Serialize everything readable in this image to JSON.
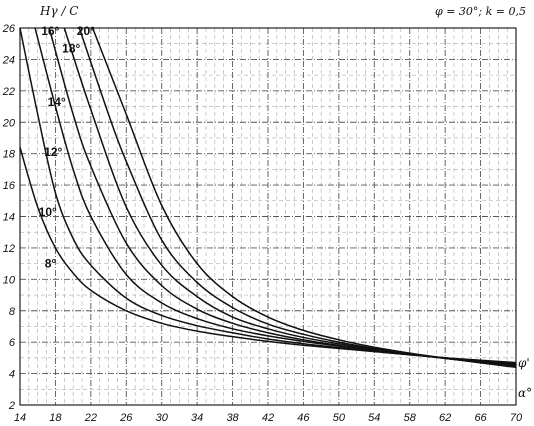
{
  "chart_data": {
    "type": "line",
    "title": "",
    "params": "φ = 30°; k = 0,5",
    "ylabel": "Hγ / C",
    "xlabel": "α°",
    "right_label": "φ'",
    "xlim": [
      14,
      70
    ],
    "ylim": [
      2,
      26
    ],
    "x_ticks": [
      "14",
      "18",
      "22",
      "26",
      "30",
      "34",
      "38",
      "42",
      "46",
      "50",
      "54",
      "58",
      "62",
      "66",
      "70"
    ],
    "y_ticks": [
      "2",
      "4",
      "6",
      "8",
      "10",
      "12",
      "14",
      "16",
      "18",
      "20",
      "22",
      "24",
      "26"
    ],
    "grid": true,
    "series": [
      {
        "name": "8°",
        "points": [
          [
            14,
            18.4
          ],
          [
            16,
            14.6
          ],
          [
            18,
            12.0
          ],
          [
            20,
            10.4
          ],
          [
            22,
            9.3
          ],
          [
            26,
            8.0
          ],
          [
            30,
            7.2
          ],
          [
            34,
            6.7
          ],
          [
            38,
            6.35
          ],
          [
            42,
            6.05
          ],
          [
            46,
            5.8
          ],
          [
            50,
            5.6
          ],
          [
            54,
            5.4
          ],
          [
            58,
            5.2
          ],
          [
            62,
            5.0
          ],
          [
            66,
            4.85
          ],
          [
            70,
            4.7
          ]
        ]
      },
      {
        "name": "10°",
        "points": [
          [
            14,
            26.0
          ],
          [
            16,
            20.5
          ],
          [
            18,
            15.5
          ],
          [
            20,
            12.6
          ],
          [
            22,
            10.9
          ],
          [
            26,
            8.8
          ],
          [
            30,
            7.7
          ],
          [
            34,
            7.05
          ],
          [
            38,
            6.6
          ],
          [
            42,
            6.2
          ],
          [
            46,
            5.9
          ],
          [
            50,
            5.65
          ],
          [
            54,
            5.42
          ],
          [
            58,
            5.2
          ],
          [
            62,
            5.0
          ],
          [
            66,
            4.82
          ],
          [
            70,
            4.65
          ]
        ]
      },
      {
        "name": "12°",
        "points": [
          [
            15.7,
            26.0
          ],
          [
            18,
            21.0
          ],
          [
            20,
            17.0
          ],
          [
            22,
            14.0
          ],
          [
            26,
            10.3
          ],
          [
            30,
            8.5
          ],
          [
            34,
            7.5
          ],
          [
            38,
            6.85
          ],
          [
            42,
            6.4
          ],
          [
            46,
            6.05
          ],
          [
            50,
            5.75
          ],
          [
            54,
            5.48
          ],
          [
            58,
            5.22
          ],
          [
            62,
            5.0
          ],
          [
            66,
            4.8
          ],
          [
            70,
            4.6
          ]
        ]
      },
      {
        "name": "14°",
        "points": [
          [
            17.3,
            26.0
          ],
          [
            20,
            20.5
          ],
          [
            22,
            17.2
          ],
          [
            26,
            12.3
          ],
          [
            30,
            9.6
          ],
          [
            34,
            8.1
          ],
          [
            38,
            7.2
          ],
          [
            42,
            6.6
          ],
          [
            46,
            6.15
          ],
          [
            50,
            5.8
          ],
          [
            54,
            5.5
          ],
          [
            58,
            5.22
          ],
          [
            62,
            4.97
          ],
          [
            66,
            4.75
          ],
          [
            70,
            4.55
          ]
        ]
      },
      {
        "name": "16°",
        "points": [
          [
            19.0,
            26.0
          ],
          [
            22,
            20.8
          ],
          [
            26,
            14.6
          ],
          [
            30,
            10.9
          ],
          [
            34,
            8.9
          ],
          [
            38,
            7.6
          ],
          [
            42,
            6.85
          ],
          [
            46,
            6.3
          ],
          [
            50,
            5.9
          ],
          [
            54,
            5.55
          ],
          [
            58,
            5.25
          ],
          [
            62,
            4.97
          ],
          [
            66,
            4.72
          ],
          [
            70,
            4.5
          ]
        ]
      },
      {
        "name": "18°",
        "points": [
          [
            20.7,
            26.0
          ],
          [
            24,
            20.5
          ],
          [
            26,
            17.5
          ],
          [
            30,
            12.5
          ],
          [
            34,
            9.8
          ],
          [
            38,
            8.2
          ],
          [
            42,
            7.15
          ],
          [
            46,
            6.5
          ],
          [
            50,
            6.0
          ],
          [
            54,
            5.6
          ],
          [
            58,
            5.27
          ],
          [
            62,
            4.97
          ],
          [
            66,
            4.7
          ],
          [
            70,
            4.45
          ]
        ]
      },
      {
        "name": "20°",
        "points": [
          [
            22.2,
            26.0
          ],
          [
            26,
            20.5
          ],
          [
            30,
            14.7
          ],
          [
            34,
            11.0
          ],
          [
            38,
            8.9
          ],
          [
            42,
            7.6
          ],
          [
            46,
            6.75
          ],
          [
            50,
            6.15
          ],
          [
            54,
            5.68
          ],
          [
            58,
            5.3
          ],
          [
            62,
            4.98
          ],
          [
            66,
            4.68
          ],
          [
            70,
            4.4
          ]
        ]
      }
    ]
  }
}
